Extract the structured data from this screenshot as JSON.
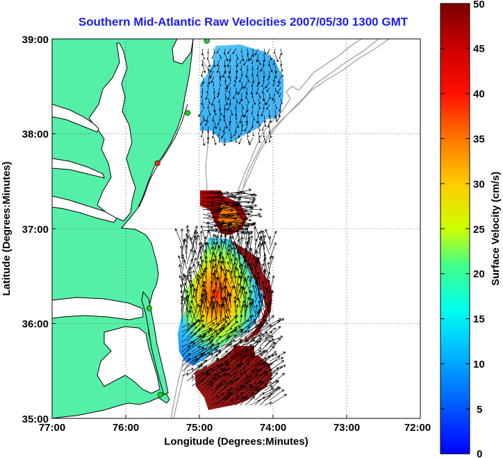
{
  "title": "Southern Mid-Atlantic Raw Velocities 2007/05/30 1300 GMT",
  "x_axis": {
    "label": "Longitude (Degrees:Minutes)",
    "ticks": [
      "77:00",
      "76:00",
      "75:00",
      "74:00",
      "73:00",
      "72:00"
    ],
    "range": [
      -77,
      -72
    ]
  },
  "y_axis": {
    "label": "Latitude (Degrees:Minutes)",
    "ticks": [
      "39:00",
      "38:00",
      "37:00",
      "36:00",
      "35:00"
    ],
    "range": [
      35,
      39
    ]
  },
  "colorbar": {
    "label": "Surface Velocity (cm/s)",
    "ticks": [
      "50",
      "45",
      "40",
      "35",
      "30",
      "25",
      "20",
      "15",
      "10",
      "5",
      "0"
    ],
    "range": [
      0,
      50
    ]
  },
  "colors": {
    "land": "#55f0a8",
    "water": "#ffffff",
    "coastline": "#000000",
    "bathymetry": "#9a9a9a",
    "title": "#1a1aff",
    "station": "#22cc22",
    "station_alt": "#dd3322"
  },
  "grid": "dotted",
  "stations": [
    {
      "lon": -74.9,
      "lat": 38.98,
      "status": "green"
    },
    {
      "lon": -75.16,
      "lat": 38.22,
      "status": "green"
    },
    {
      "lon": -75.57,
      "lat": 37.69,
      "status": "red"
    },
    {
      "lon": -75.68,
      "lat": 36.16,
      "status": "green"
    },
    {
      "lon": -75.53,
      "lat": 35.25,
      "status": "green"
    }
  ]
}
